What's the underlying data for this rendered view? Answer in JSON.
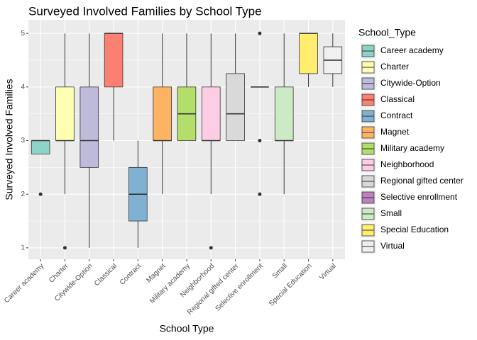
{
  "chart_data": {
    "type": "boxplot",
    "title": "Surveyed Involved Families by School Type",
    "x_label": "School Type",
    "y_label": "Surveyed Involved Families",
    "legend_title": "School_Type",
    "categories": [
      "Career academy",
      "Charter",
      "Citywide-Option",
      "Classical",
      "Contract",
      "Magnet",
      "Military academy",
      "Neighborhood",
      "Regional gifted center",
      "Selective enrollment",
      "Small",
      "Special Education",
      "Virtual"
    ],
    "colors": [
      "#8DD3C7",
      "#FFFFB3",
      "#BEBADA",
      "#FB8072",
      "#80B1D3",
      "#FDB462",
      "#B3DE69",
      "#FCCDE5",
      "#D9D9D9",
      "#BC80BD",
      "#CCEBC5",
      "#FFED6F",
      "#F0F0F0"
    ],
    "boxes": [
      {
        "min": 2.75,
        "q1": 2.75,
        "median": 3,
        "q3": 3,
        "max": 3,
        "outliers": [
          2
        ]
      },
      {
        "min": 2,
        "q1": 3,
        "median": 3,
        "q3": 4,
        "max": 5,
        "outliers": [
          1
        ]
      },
      {
        "min": 1,
        "q1": 2.5,
        "median": 3,
        "q3": 4,
        "max": 5,
        "outliers": []
      },
      {
        "min": 3,
        "q1": 4,
        "median": 5,
        "q3": 5,
        "max": 5,
        "outliers": []
      },
      {
        "min": 1,
        "q1": 1.5,
        "median": 2,
        "q3": 2.5,
        "max": 3,
        "outliers": []
      },
      {
        "min": 2,
        "q1": 3,
        "median": 3,
        "q3": 4,
        "max": 5,
        "outliers": []
      },
      {
        "min": 3,
        "q1": 3,
        "median": 3.5,
        "q3": 4,
        "max": 5,
        "outliers": []
      },
      {
        "min": 2,
        "q1": 3,
        "median": 3,
        "q3": 4,
        "max": 5,
        "outliers": [
          1
        ]
      },
      {
        "min": 3,
        "q1": 3,
        "median": 3.5,
        "q3": 4.25,
        "max": 5,
        "outliers": []
      },
      {
        "min": 4,
        "q1": 4,
        "median": 4,
        "q3": 4,
        "max": 4,
        "outliers": [
          5,
          3,
          2
        ]
      },
      {
        "min": 2,
        "q1": 3,
        "median": 3,
        "q3": 4,
        "max": 5,
        "outliers": []
      },
      {
        "min": 4,
        "q1": 4.25,
        "median": 5,
        "q3": 5,
        "max": 5,
        "outliers": []
      },
      {
        "min": 4,
        "q1": 4.25,
        "median": 4.5,
        "q3": 4.75,
        "max": 5,
        "outliers": []
      }
    ],
    "ylim": [
      0.8,
      5.2
    ],
    "yticks": [
      1,
      2,
      3,
      4,
      5
    ],
    "minor_yticks": [
      1.5,
      2.5,
      3.5,
      4.5
    ],
    "grid": true
  }
}
